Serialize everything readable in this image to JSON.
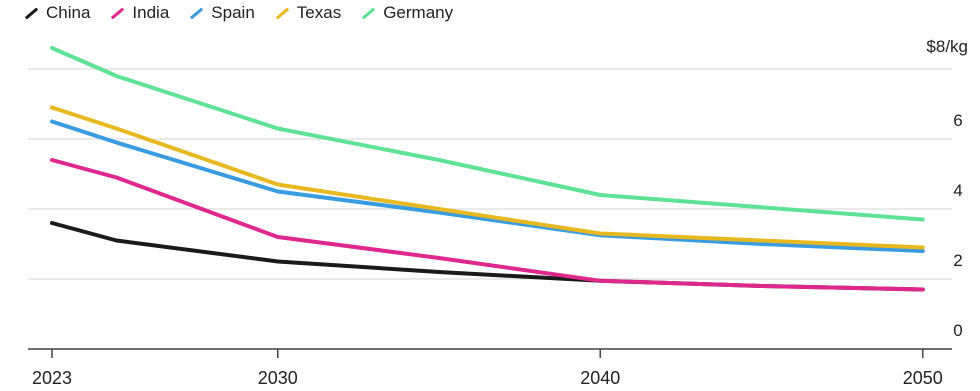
{
  "chart_data": {
    "type": "line",
    "title": "",
    "xlabel": "",
    "ylabel": "",
    "unit_label": "$8/kg",
    "legend_position": "top-left",
    "grid": true,
    "xlim": [
      2023,
      2051
    ],
    "ylim": [
      0,
      8
    ],
    "x_ticks": [
      2023,
      2030,
      2040,
      2050
    ],
    "y_ticks": [
      0,
      2,
      4,
      6
    ],
    "series": [
      {
        "name": "China",
        "color": "#1a1a1a",
        "x": [
          2023,
          2025,
          2030,
          2035,
          2040,
          2045,
          2050
        ],
        "y": [
          3.6,
          3.1,
          2.5,
          2.2,
          1.95,
          1.8,
          1.7
        ]
      },
      {
        "name": "India",
        "color": "#e0278e",
        "x": [
          2023,
          2025,
          2030,
          2035,
          2040,
          2045,
          2050
        ],
        "y": [
          5.4,
          4.9,
          3.2,
          2.6,
          1.95,
          1.8,
          1.7
        ]
      },
      {
        "name": "Spain",
        "color": "#3a9ce0",
        "x": [
          2023,
          2025,
          2030,
          2035,
          2040,
          2045,
          2050
        ],
        "y": [
          6.5,
          5.9,
          4.5,
          3.9,
          3.25,
          3.0,
          2.8
        ]
      },
      {
        "name": "Texas",
        "color": "#e8b820",
        "x": [
          2023,
          2025,
          2030,
          2035,
          2040,
          2045,
          2050
        ],
        "y": [
          6.9,
          6.3,
          4.7,
          4.0,
          3.3,
          3.1,
          2.9
        ]
      },
      {
        "name": "Germany",
        "color": "#5ee295",
        "x": [
          2023,
          2025,
          2030,
          2035,
          2040,
          2045,
          2050
        ],
        "y": [
          8.6,
          7.8,
          6.3,
          5.4,
          4.4,
          4.05,
          3.7
        ]
      }
    ]
  }
}
